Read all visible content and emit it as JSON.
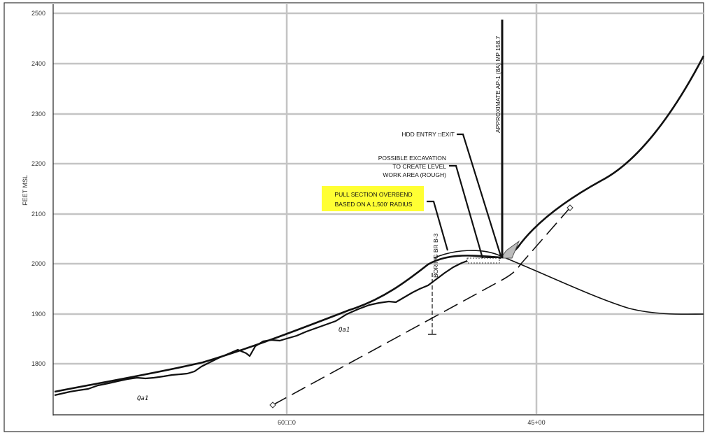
{
  "y_axis": {
    "label": "FEET MSL",
    "ticks": [
      "2500",
      "2400",
      "2300",
      "2200",
      "2100",
      "2000",
      "1900",
      "1800"
    ]
  },
  "x_axis": {
    "ticks": [
      "60□□0",
      "45+00"
    ]
  },
  "annotations": {
    "ap_marker": "APPROXIMATE AP-1 (8A) MP 158.7",
    "hdd_entry": "HDD ENTRY □EXIT",
    "excavation": [
      "POSSIBLE EXCAVATION",
      "TO CREATE LEVEL",
      "WORK AREA (ROUGH)"
    ],
    "pull_section": [
      "PULL SECTION OVERBEND",
      "BASED ON A 1,500' RADIUS"
    ],
    "boring": "BORING BR B-3"
  },
  "geology": {
    "label_1": "Qa1",
    "label_2": "Qa1"
  },
  "colors": {
    "grid": "#c4c4c4",
    "highlight": "#ffff33",
    "line": "#111111"
  }
}
